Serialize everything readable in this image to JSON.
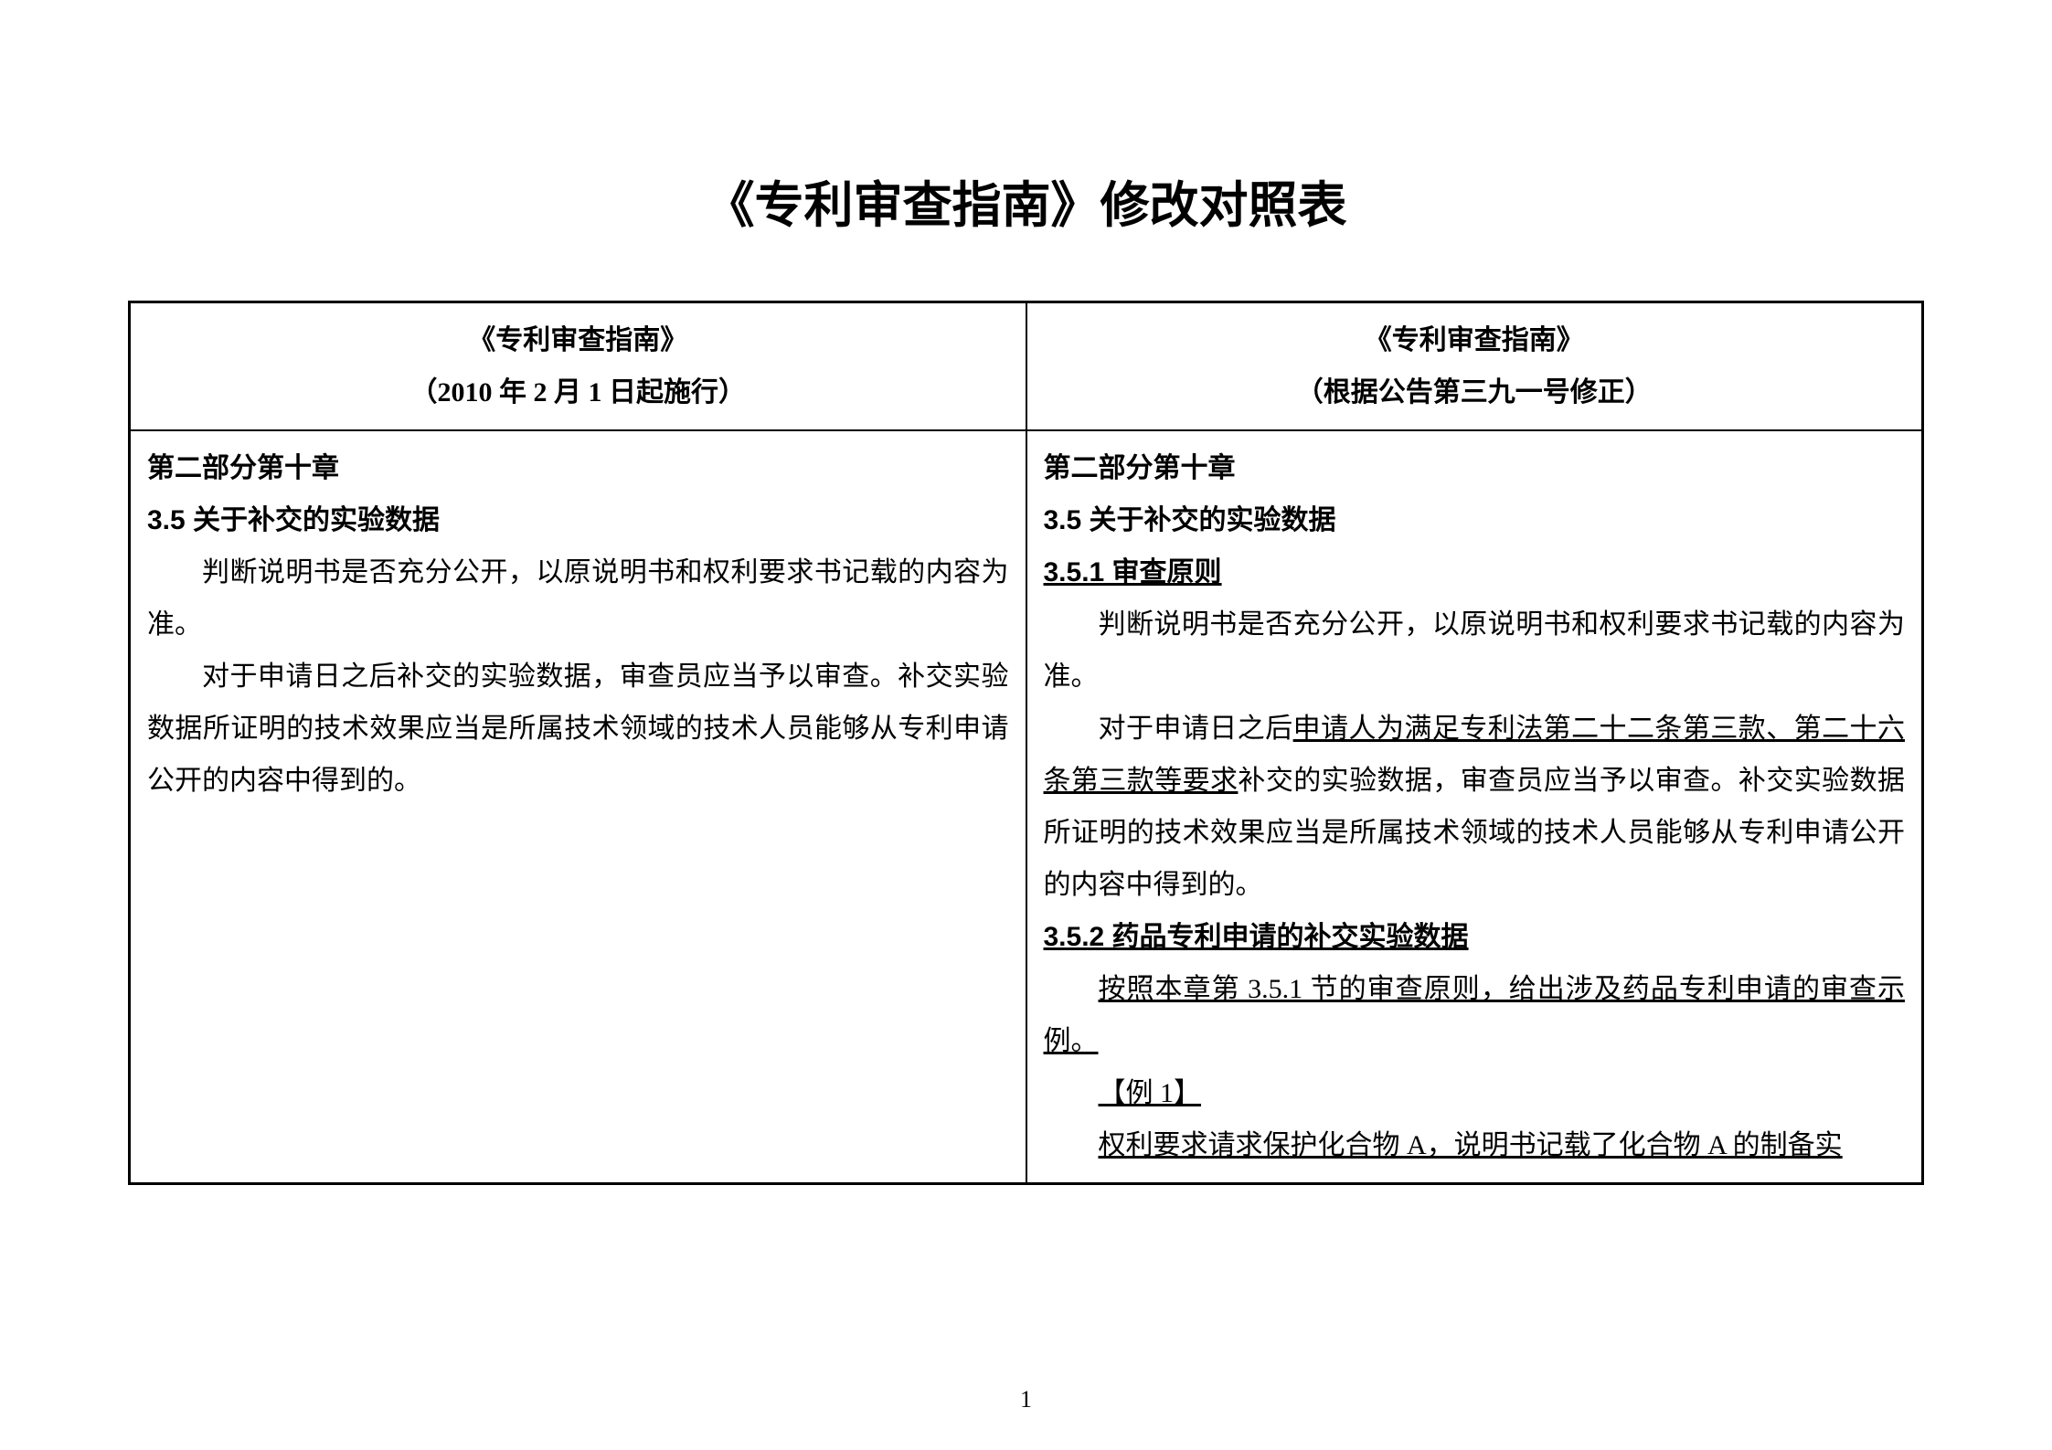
{
  "document": {
    "title": "《专利审查指南》修改对照表",
    "page_number": "1"
  },
  "table": {
    "header": {
      "left_title": "《专利审查指南》",
      "left_subtitle": "（2010 年 2 月 1 日起施行）",
      "right_title": "《专利审查指南》",
      "right_subtitle": "（根据公告第三九一号修正）"
    },
    "left": {
      "part": "第二部分第十章",
      "sec35": "3.5 关于补交的实验数据",
      "para1": "判断说明书是否充分公开，以原说明书和权利要求书记载的内容为准。",
      "para2": "对于申请日之后补交的实验数据，审查员应当予以审查。补交实验数据所证明的技术效果应当是所属技术领域的技术人员能够从专利申请公开的内容中得到的。"
    },
    "right": {
      "part": "第二部分第十章",
      "sec35": "3.5 关于补交的实验数据",
      "sec351": "3.5.1 审查原则",
      "para1": "判断说明书是否充分公开，以原说明书和权利要求书记载的内容为准。",
      "para2_pre": "对于申请日之后",
      "para2_ins1": "申请人为满足专利法第二十二条第三款、第二十六条第三款等要求",
      "para2_post": "补交的实验数据，审查员应当予以审查。补交实验数据所证明的技术效果应当是所属技术领域的技术人员能够从专利申请公开的内容中得到的。",
      "sec352": "3.5.2 药品专利申请的补交实验数据",
      "para3": "按照本章第 3.5.1 节的审查原则，给出涉及药品专利申请的审查示例。",
      "ex1_label": "【例 1】",
      "ex1_text": "权利要求请求保护化合物 A，说明书记载了化合物 A 的制备实"
    }
  }
}
